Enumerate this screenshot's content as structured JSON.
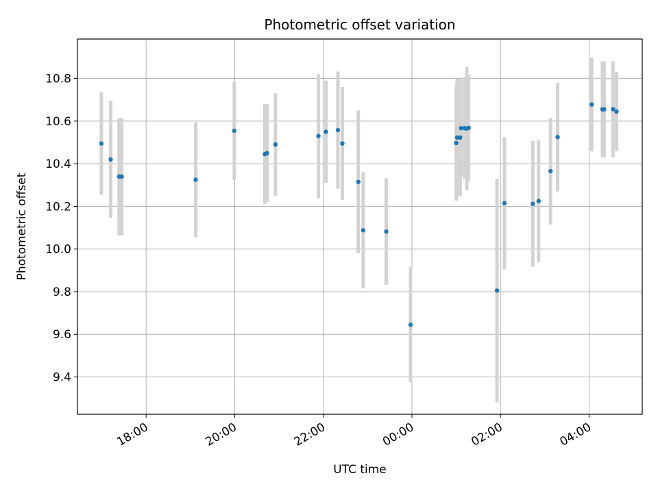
{
  "chart_data": {
    "type": "scatter",
    "title": "Photometric offset variation",
    "xlabel": "UTC time",
    "ylabel": "Photometric offset",
    "grid": true,
    "xlim_hours": [
      16.45,
      29.2
    ],
    "ylim": [
      9.225,
      10.985
    ],
    "x_ticks": [
      {
        "hours": 18,
        "label": "18:00"
      },
      {
        "hours": 20,
        "label": "20:00"
      },
      {
        "hours": 22,
        "label": "22:00"
      },
      {
        "hours": 24,
        "label": "00:00"
      },
      {
        "hours": 26,
        "label": "02:00"
      },
      {
        "hours": 28,
        "label": "04:00"
      }
    ],
    "y_ticks": [
      {
        "value": 9.4,
        "label": "9.4"
      },
      {
        "value": 9.6,
        "label": "9.6"
      },
      {
        "value": 9.8,
        "label": "9.8"
      },
      {
        "value": 10.0,
        "label": "10.0"
      },
      {
        "value": 10.2,
        "label": "10.2"
      },
      {
        "value": 10.4,
        "label": "10.4"
      },
      {
        "value": 10.6,
        "label": "10.6"
      },
      {
        "value": 10.8,
        "label": "10.8"
      }
    ],
    "point_color": "#1f77b4",
    "errorbar_color": "#d3d3d3",
    "series": [
      {
        "name": "offset",
        "points": [
          {
            "t": 16.99,
            "y": 10.495,
            "err": 0.24
          },
          {
            "t": 17.2,
            "y": 10.42,
            "err": 0.275
          },
          {
            "t": 17.39,
            "y": 10.34,
            "err": 0.275
          },
          {
            "t": 17.45,
            "y": 10.34,
            "err": 0.275
          },
          {
            "t": 19.12,
            "y": 10.325,
            "err": 0.27
          },
          {
            "t": 19.99,
            "y": 10.555,
            "err": 0.23
          },
          {
            "t": 20.68,
            "y": 10.445,
            "err": 0.235
          },
          {
            "t": 20.73,
            "y": 10.45,
            "err": 0.23
          },
          {
            "t": 20.92,
            "y": 10.49,
            "err": 0.24
          },
          {
            "t": 21.89,
            "y": 10.53,
            "err": 0.29
          },
          {
            "t": 22.06,
            "y": 10.55,
            "err": 0.24
          },
          {
            "t": 22.33,
            "y": 10.558,
            "err": 0.275
          },
          {
            "t": 22.43,
            "y": 10.495,
            "err": 0.265
          },
          {
            "t": 22.79,
            "y": 10.315,
            "err": 0.335
          },
          {
            "t": 22.9,
            "y": 10.088,
            "err": 0.272
          },
          {
            "t": 23.42,
            "y": 10.082,
            "err": 0.25
          },
          {
            "t": 23.97,
            "y": 9.645,
            "err": 0.27
          },
          {
            "t": 25.0,
            "y": 10.497,
            "err": 0.27
          },
          {
            "t": 25.02,
            "y": 10.523,
            "err": 0.275
          },
          {
            "t": 25.09,
            "y": 10.523,
            "err": 0.275
          },
          {
            "t": 25.11,
            "y": 10.567,
            "err": 0.225
          },
          {
            "t": 25.19,
            "y": 10.567,
            "err": 0.24
          },
          {
            "t": 25.24,
            "y": 10.565,
            "err": 0.29
          },
          {
            "t": 25.28,
            "y": 10.568,
            "err": 0.25
          },
          {
            "t": 25.92,
            "y": 9.805,
            "err": 0.525
          },
          {
            "t": 26.09,
            "y": 10.215,
            "err": 0.31
          },
          {
            "t": 26.73,
            "y": 10.212,
            "err": 0.295
          },
          {
            "t": 26.86,
            "y": 10.225,
            "err": 0.285
          },
          {
            "t": 27.13,
            "y": 10.365,
            "err": 0.25
          },
          {
            "t": 27.29,
            "y": 10.525,
            "err": 0.255
          },
          {
            "t": 28.06,
            "y": 10.678,
            "err": 0.22
          },
          {
            "t": 28.3,
            "y": 10.655,
            "err": 0.225
          },
          {
            "t": 28.34,
            "y": 10.655,
            "err": 0.225
          },
          {
            "t": 28.54,
            "y": 10.656,
            "err": 0.225
          },
          {
            "t": 28.62,
            "y": 10.645,
            "err": 0.185
          }
        ]
      }
    ]
  }
}
